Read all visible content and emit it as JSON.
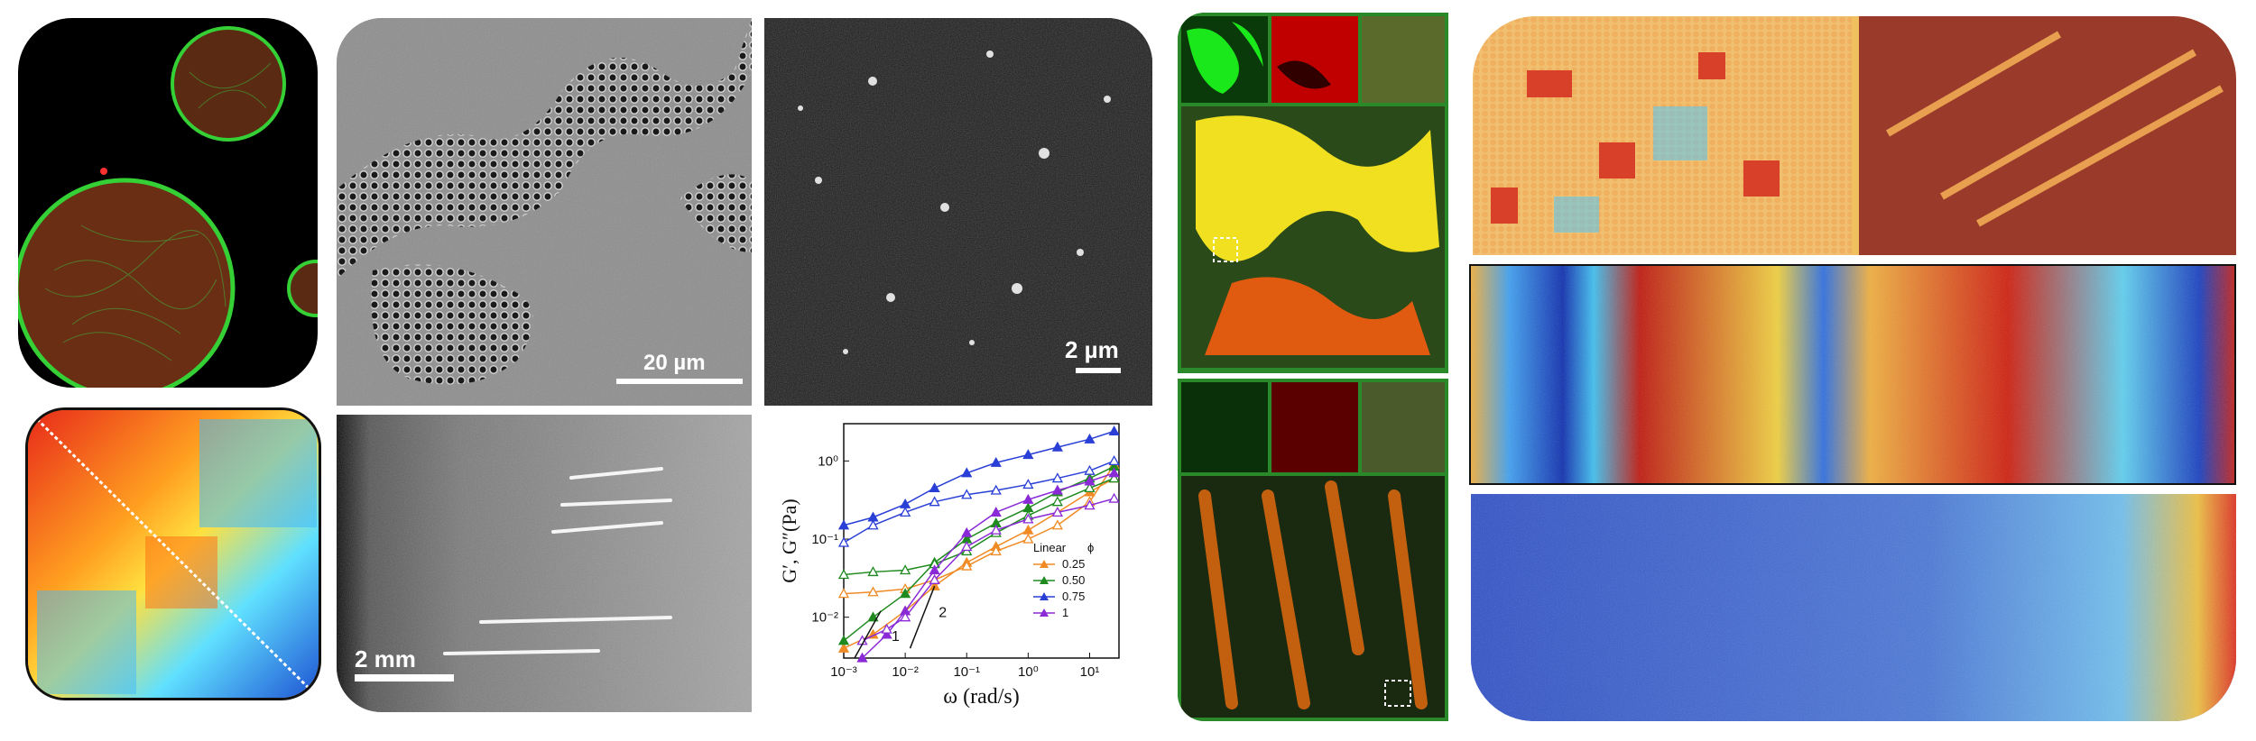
{
  "panels": {
    "vesicles": {
      "description_colors": {
        "bg": "#000000",
        "ring": "#2bd62b",
        "fill": "#a0481c"
      }
    },
    "colloid_em": {
      "scale_label": "20 µm"
    },
    "dark_field": {
      "scale_label": "2 µm"
    },
    "crack_film": {
      "scale_label": "2 mm"
    },
    "heatmap": {},
    "confocal_top": {},
    "confocal_bottom": {},
    "simulation_tr": {},
    "simulation_mid": {},
    "simulation_bot": {}
  },
  "chart_data": {
    "type": "line",
    "xlabel": "ω (rad/s)",
    "ylabel": "G′, G″(Pa)",
    "x_scale": "log",
    "y_scale": "log",
    "xlim": [
      0.001,
      30
    ],
    "ylim": [
      0.003,
      3
    ],
    "x_ticks": [
      "10⁻³",
      "10⁻²",
      "10⁻¹",
      "10⁰",
      "10¹"
    ],
    "y_ticks": [
      "10⁻²",
      "10⁻¹",
      "10⁰"
    ],
    "legend_title": "Linear",
    "legend_symbol": "ϕ",
    "legend_placement": "bottom-right",
    "slope_labels": [
      "1",
      "2"
    ],
    "series": [
      {
        "name": "0.25",
        "color": "#f08a24",
        "marker": "triangle-filled",
        "x": [
          0.001,
          0.003,
          0.01,
          0.03,
          0.1,
          0.3,
          1,
          3,
          10,
          25
        ],
        "y": [
          0.004,
          0.006,
          0.012,
          0.025,
          0.05,
          0.08,
          0.13,
          0.22,
          0.4,
          0.6
        ]
      },
      {
        "name": "0.25",
        "color": "#f08a24",
        "marker": "triangle-open",
        "x": [
          0.001,
          0.003,
          0.01,
          0.03,
          0.1,
          0.3,
          1,
          3,
          10,
          25
        ],
        "y": [
          0.02,
          0.021,
          0.023,
          0.03,
          0.045,
          0.07,
          0.1,
          0.15,
          0.3,
          0.9
        ]
      },
      {
        "name": "0.50",
        "color": "#1f8a1f",
        "marker": "triangle-filled",
        "x": [
          0.001,
          0.003,
          0.01,
          0.03,
          0.1,
          0.3,
          1,
          3,
          10,
          25
        ],
        "y": [
          0.005,
          0.01,
          0.02,
          0.05,
          0.1,
          0.16,
          0.25,
          0.4,
          0.6,
          0.85
        ]
      },
      {
        "name": "0.50",
        "color": "#1f8a1f",
        "marker": "triangle-open",
        "x": [
          0.001,
          0.003,
          0.01,
          0.03,
          0.1,
          0.3,
          1,
          3,
          10,
          25
        ],
        "y": [
          0.035,
          0.038,
          0.04,
          0.048,
          0.07,
          0.12,
          0.2,
          0.3,
          0.45,
          0.6
        ]
      },
      {
        "name": "0.75",
        "color": "#2a3fd6",
        "marker": "triangle-filled",
        "x": [
          0.001,
          0.003,
          0.01,
          0.03,
          0.1,
          0.3,
          1,
          3,
          10,
          25
        ],
        "y": [
          0.15,
          0.19,
          0.28,
          0.45,
          0.7,
          0.95,
          1.2,
          1.5,
          1.9,
          2.4
        ]
      },
      {
        "name": "0.75",
        "color": "#2a3fd6",
        "marker": "triangle-open",
        "x": [
          0.001,
          0.003,
          0.01,
          0.03,
          0.1,
          0.3,
          1,
          3,
          10,
          25
        ],
        "y": [
          0.09,
          0.15,
          0.22,
          0.3,
          0.37,
          0.42,
          0.5,
          0.6,
          0.75,
          1.0
        ]
      },
      {
        "name": "1",
        "color": "#8a2ad6",
        "marker": "triangle-filled",
        "x": [
          0.002,
          0.005,
          0.01,
          0.03,
          0.1,
          0.3,
          1,
          3,
          10,
          25
        ],
        "y": [
          0.003,
          0.006,
          0.012,
          0.04,
          0.12,
          0.22,
          0.32,
          0.42,
          0.55,
          0.7
        ]
      },
      {
        "name": "1",
        "color": "#8a2ad6",
        "marker": "triangle-open",
        "x": [
          0.002,
          0.005,
          0.01,
          0.03,
          0.1,
          0.3,
          1,
          3,
          10,
          25
        ],
        "y": [
          0.005,
          0.007,
          0.01,
          0.03,
          0.08,
          0.13,
          0.18,
          0.22,
          0.27,
          0.33
        ]
      }
    ]
  }
}
